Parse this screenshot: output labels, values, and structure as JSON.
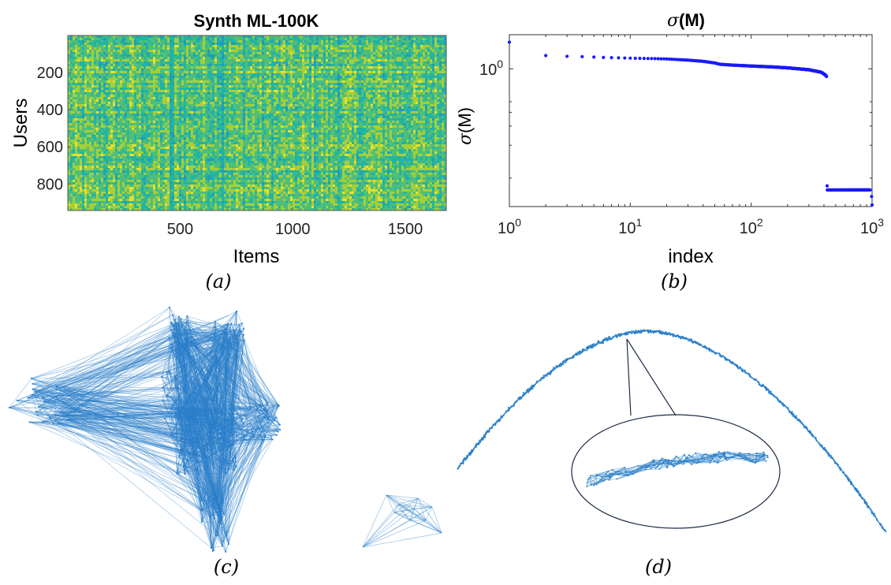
{
  "chart_data": [
    {
      "panel": "(a)",
      "type": "heatmap",
      "title": "Synth ML-100K",
      "xlabel": "Items",
      "ylabel": "Users",
      "xticks": [
        500,
        1000,
        1500
      ],
      "yticks": [
        200,
        400,
        600,
        800
      ],
      "xlim": [
        1,
        1682
      ],
      "ylim": [
        1,
        943
      ],
      "colors": [
        "#1f9bbd",
        "#22b3a4",
        "#4fbe7a",
        "#a5cf3a",
        "#e6e02c"
      ]
    },
    {
      "panel": "(b)",
      "type": "scatter",
      "title": "σ(M)",
      "xlabel": "index",
      "ylabel": "σ(M)",
      "xscale": "log",
      "yscale": "log",
      "xlim": [
        1,
        1000
      ],
      "xticks": [
        "10^0",
        "10^1",
        "10^2",
        "10^3"
      ],
      "yticks": [
        "10^0"
      ],
      "color": "#1a1aff",
      "series": [
        {
          "x": [
            1,
            2,
            3,
            4,
            5,
            6,
            7,
            8,
            9,
            10,
            15,
            20,
            30,
            40,
            50,
            55,
            70,
            100,
            150,
            200,
            300,
            380,
            410,
            420,
            430,
            600,
            800,
            960,
            980,
            1000
          ],
          "y": [
            1.75,
            1.32,
            1.3,
            1.29,
            1.28,
            1.27,
            1.265,
            1.26,
            1.255,
            1.25,
            1.24,
            1.23,
            1.2,
            1.17,
            1.13,
            1.1,
            1.08,
            1.06,
            1.04,
            1.02,
            0.98,
            0.93,
            0.88,
            0.85,
            0.078,
            0.078,
            0.078,
            0.078,
            0.068,
            0.057
          ]
        }
      ]
    },
    {
      "panel": "(c)",
      "type": "network"
    },
    {
      "panel": "(d)",
      "type": "network"
    }
  ],
  "subcaptions": [
    "(a)",
    "(b)",
    "(c)",
    "(d)"
  ],
  "graph_color": "#2a7fc9"
}
